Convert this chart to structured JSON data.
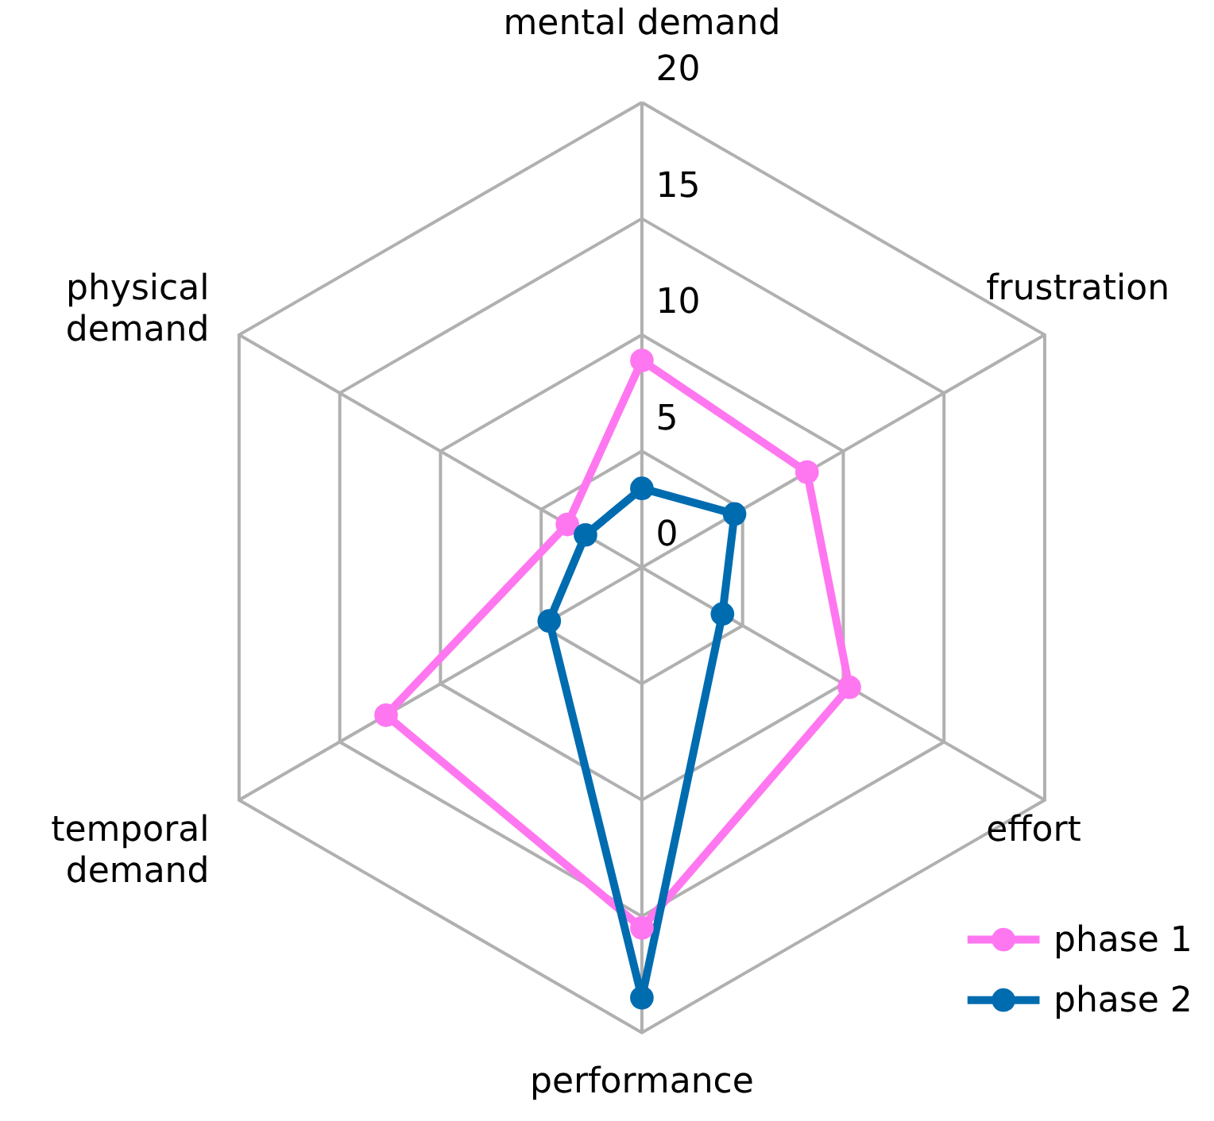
{
  "chart_data": {
    "type": "radar",
    "categories": [
      "mental demand",
      "frustration",
      "effort",
      "performance",
      "temporal demand",
      "physical demand"
    ],
    "series": [
      {
        "name": "phase 1",
        "color": "#ff77f0",
        "values": [
          8.9,
          8.2,
          10.3,
          15.5,
          12.7,
          3.7
        ]
      },
      {
        "name": "phase 2",
        "color": "#006cb0",
        "values": [
          3.4,
          4.6,
          4.0,
          18.5,
          4.6,
          2.8
        ]
      }
    ],
    "ylim": [
      0,
      20
    ],
    "yticks": [
      0,
      5,
      10,
      15,
      20
    ],
    "grid": true,
    "legend": "bottom right",
    "marker": "circle",
    "line_style": "solid"
  }
}
